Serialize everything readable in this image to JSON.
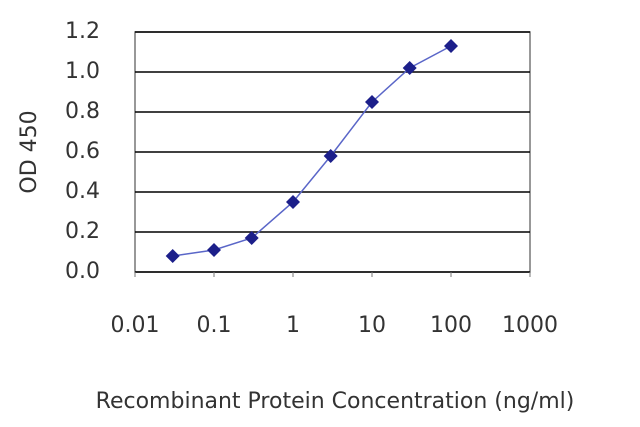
{
  "chart_data": {
    "type": "line",
    "x_label": "Recombinant Protein Concentration (ng/ml)",
    "y_label": "OD 450",
    "x": [
      0.03,
      0.1,
      0.3,
      1,
      3,
      10,
      30,
      100
    ],
    "series": [
      {
        "color": "#1c1f8a",
        "values": [
          0.08,
          0.11,
          0.17,
          0.35,
          0.58,
          0.85,
          1.02,
          1.13
        ]
      }
    ],
    "xscale": "log",
    "xlim": [
      0.01,
      1000
    ],
    "xticks": [
      0.01,
      0.1,
      1,
      10,
      100,
      1000
    ],
    "ylim": [
      0,
      1.2
    ],
    "yticks": [
      {
        "value": 0,
        "label": "0.0"
      },
      0.2,
      0.4,
      0.6,
      0.8,
      {
        "value": 1,
        "label": "1.0"
      },
      1.2
    ],
    "grid": true
  }
}
